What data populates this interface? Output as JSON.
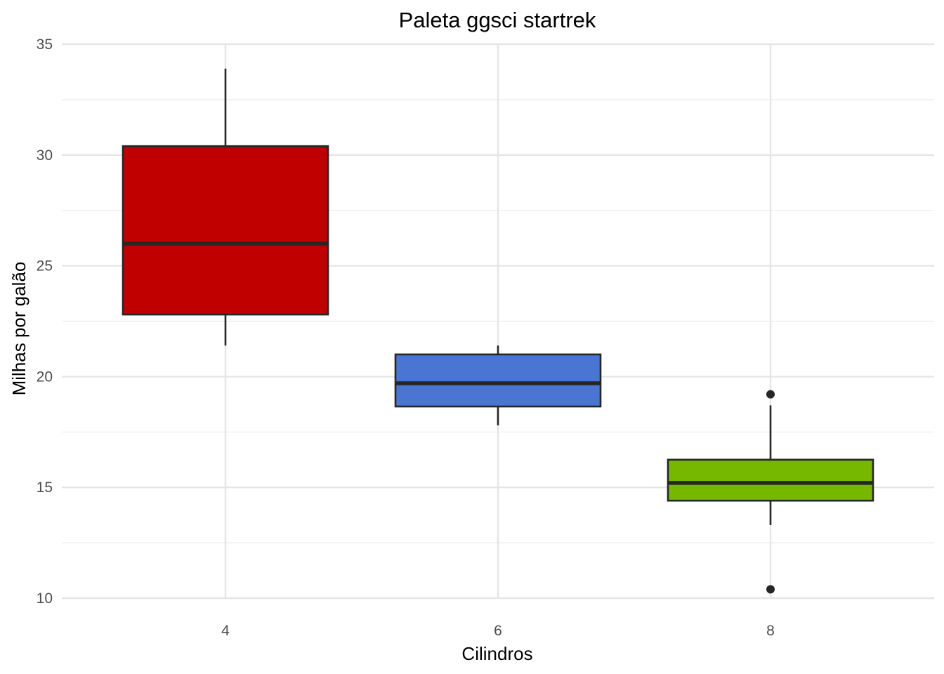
{
  "chart_data": {
    "type": "box",
    "title": "Paleta ggsci startrek",
    "xlabel": "Cilindros",
    "ylabel": "Milhas por galão",
    "ylim": [
      10,
      35
    ],
    "y_ticks": [
      "10",
      "15",
      "20",
      "25",
      "30",
      "35"
    ],
    "categories": [
      "4",
      "6",
      "8"
    ],
    "grid": true,
    "legend": "none",
    "colors": [
      "#C00000",
      "#4A75D2",
      "#76B700"
    ],
    "boxes": [
      {
        "category": "4",
        "whisker_low": 21.4,
        "q1": 22.8,
        "median": 26.0,
        "q3": 30.4,
        "whisker_high": 33.9,
        "outliers": []
      },
      {
        "category": "6",
        "whisker_low": 17.8,
        "q1": 18.65,
        "median": 19.7,
        "q3": 21.0,
        "whisker_high": 21.4,
        "outliers": []
      },
      {
        "category": "8",
        "whisker_low": 13.3,
        "q1": 14.4,
        "median": 15.2,
        "q3": 16.25,
        "whisker_high": 18.7,
        "outliers": [
          19.2,
          10.4
        ]
      }
    ]
  }
}
